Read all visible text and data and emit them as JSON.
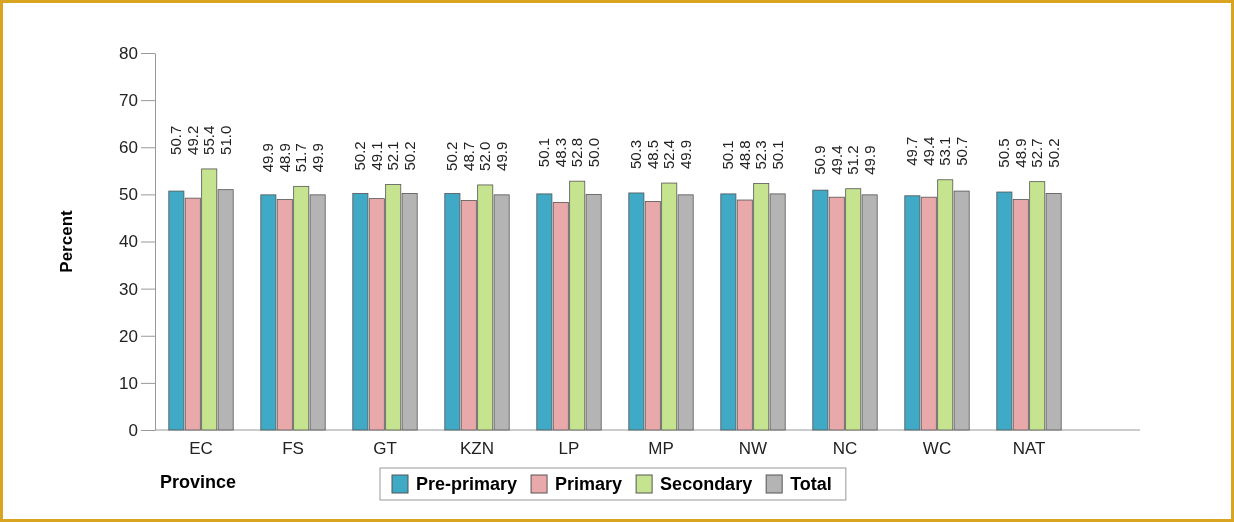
{
  "chart_data": {
    "type": "bar",
    "xlabel": "Province",
    "ylabel": "Percent",
    "categories": [
      "EC",
      "FS",
      "GT",
      "KZN",
      "LP",
      "MP",
      "NW",
      "NC",
      "WC",
      "NAT"
    ],
    "series": [
      {
        "name": "Pre-primary",
        "color": "#3fa9c6",
        "values": [
          50.7,
          49.9,
          50.2,
          50.2,
          50.1,
          50.3,
          50.1,
          50.9,
          49.7,
          50.5
        ]
      },
      {
        "name": "Primary",
        "color": "#e9a9ab",
        "values": [
          49.2,
          48.9,
          49.1,
          48.7,
          48.3,
          48.5,
          48.8,
          49.4,
          49.4,
          48.9
        ]
      },
      {
        "name": "Secondary",
        "color": "#c6e490",
        "values": [
          55.4,
          51.7,
          52.1,
          52.0,
          52.8,
          52.4,
          52.3,
          51.2,
          53.1,
          52.7
        ]
      },
      {
        "name": "Total",
        "color": "#b4b4b4",
        "values": [
          51.0,
          49.9,
          50.2,
          49.9,
          50.0,
          49.9,
          50.1,
          49.9,
          50.7,
          50.2
        ]
      }
    ],
    "value_labels": [
      [
        "50.7",
        "49.9",
        "50.2",
        "50.2",
        "50.1",
        "50.3",
        "50.1",
        "50.9",
        "49.7",
        "50.5"
      ],
      [
        "49.2",
        "48.9",
        "49.1",
        "48.7",
        "48.3",
        "48.5",
        "48.8",
        "49.4",
        "49.4",
        "48.9"
      ],
      [
        "55.4",
        "51.7",
        "52.1",
        "52.0",
        "52.8",
        "52.4",
        "52.3",
        "51.2",
        "53.1",
        "52.7"
      ],
      [
        "51.0",
        "49.9",
        "50.2",
        "49.9",
        "50.0",
        "49.9",
        "50.1",
        "49.9",
        "50.7",
        "50.2"
      ]
    ],
    "ylim": [
      0,
      80
    ],
    "yticks": [
      0,
      10,
      20,
      30,
      40,
      50,
      60,
      70,
      80
    ],
    "grid": false,
    "legend": "bottom"
  }
}
